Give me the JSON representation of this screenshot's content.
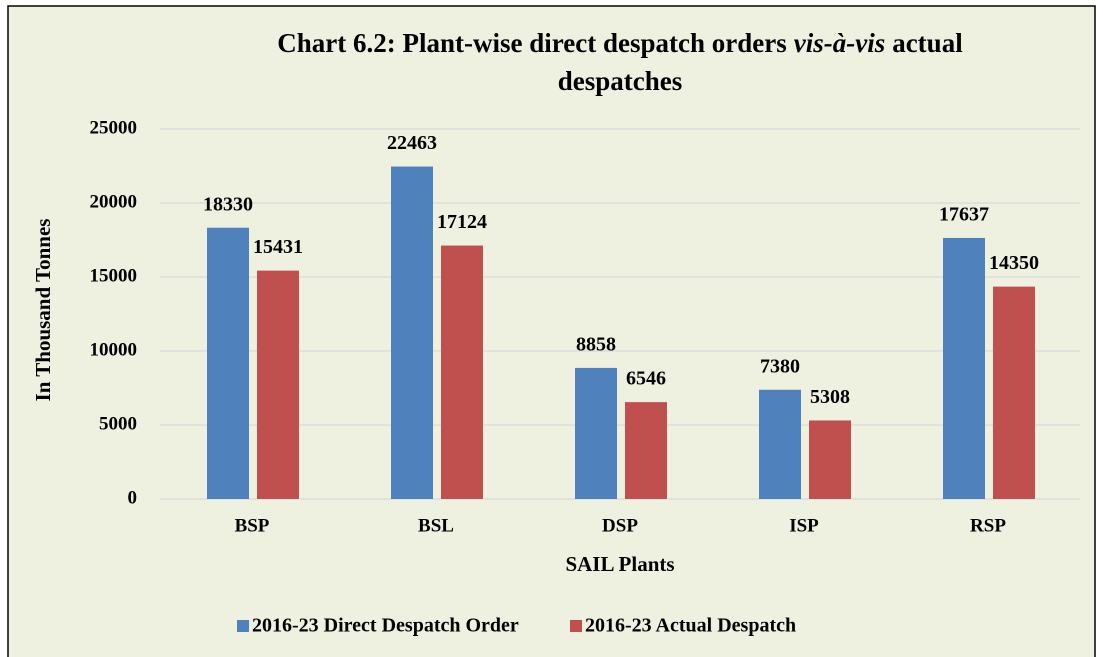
{
  "chart_data": {
    "type": "bar",
    "title": [
      "Chart 6.2: Plant-wise direct despatch orders",
      "vis-à-vis",
      "actual",
      "despatches"
    ],
    "x_label": "SAIL Plants",
    "y_label": "In Thousand Tonnes",
    "categories": [
      "BSP",
      "BSL",
      "DSP",
      "ISP",
      "RSP"
    ],
    "series": [
      {
        "name": "2016-23 Direct Despatch Order",
        "color": "#4f81bd",
        "values": [
          18330,
          22463,
          8858,
          7380,
          17637
        ]
      },
      {
        "name": "2016-23 Actual Despatch",
        "color": "#c0504d",
        "values": [
          15431,
          17124,
          6546,
          5308,
          14350
        ]
      }
    ],
    "ylim": [
      0,
      25000
    ],
    "yticks": [
      0,
      5000,
      10000,
      15000,
      20000,
      25000
    ],
    "grid": true,
    "legend": "bottom"
  }
}
